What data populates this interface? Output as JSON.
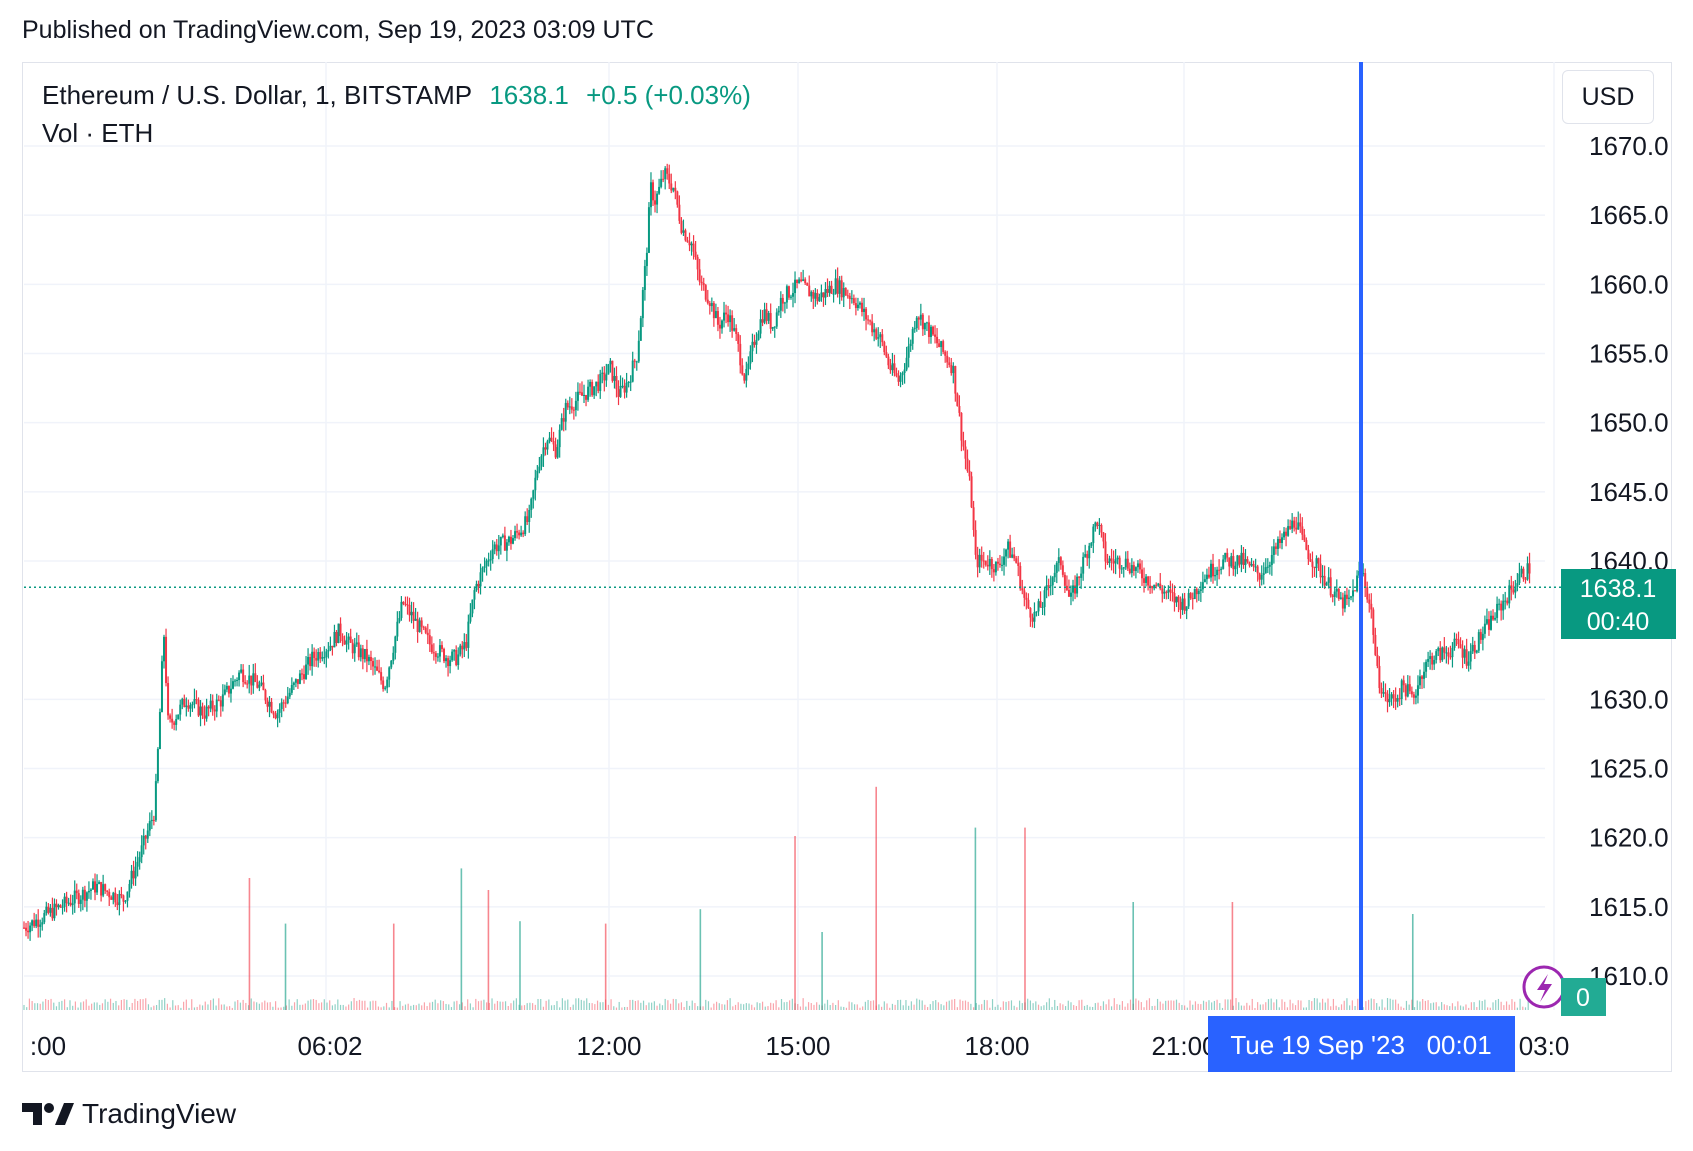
{
  "published": "Published on TradingView.com, Sep 19, 2023 03:09 UTC",
  "legend": {
    "symbol": "Ethereum / U.S. Dollar, 1, BITSTAMP",
    "price": "1638.1",
    "change": "+0.5 (+0.03%)",
    "volume": "Vol · ETH"
  },
  "currency_button": "USD",
  "price_label": {
    "value": "1638.1",
    "countdown": "00:40"
  },
  "volume_label": "0",
  "crosshair_label": "Tue 19 Sep '23   00:01",
  "brand": "TradingView",
  "colors": {
    "up": "#089981",
    "down": "#f23645",
    "crosshair": "#2962ff",
    "accent": "#22ab94"
  },
  "chart_data": {
    "type": "candlestick",
    "title": "Ethereum / U.S. Dollar, 1, BITSTAMP",
    "ylim": [
      1607,
      1674
    ],
    "y_ticks": [
      "1670.0",
      "1665.0",
      "1660.0",
      "1655.0",
      "1650.0",
      "1645.0",
      "1640.0",
      "1630.0",
      "1625.0",
      "1620.0",
      "1615.0",
      "1610.0"
    ],
    "x_ticks": [
      ":00",
      "06:02",
      "12:00",
      "15:00",
      "18:00",
      "21:00",
      "03:0"
    ],
    "current_price": 1638.1,
    "grid": true,
    "series": [
      {
        "name": "price",
        "anchors": [
          [
            0,
            1613.5
          ],
          [
            8,
            1615
          ],
          [
            16,
            1616.5
          ],
          [
            22,
            1615.5
          ],
          [
            26,
            1619
          ],
          [
            29,
            1622
          ],
          [
            30,
            1628
          ],
          [
            31,
            1635
          ],
          [
            32,
            1628
          ],
          [
            36,
            1630
          ],
          [
            40,
            1629
          ],
          [
            44,
            1630
          ],
          [
            48,
            1632
          ],
          [
            52,
            1631
          ],
          [
            56,
            1629
          ],
          [
            60,
            1631
          ],
          [
            64,
            1633
          ],
          [
            68,
            1634
          ],
          [
            70,
            1635
          ],
          [
            72,
            1634
          ],
          [
            76,
            1633
          ],
          [
            80,
            1631
          ],
          [
            84,
            1637
          ],
          [
            86,
            1636
          ],
          [
            90,
            1634
          ],
          [
            94,
            1633
          ],
          [
            96,
            1633
          ],
          [
            98,
            1634
          ],
          [
            100,
            1638
          ],
          [
            104,
            1641
          ],
          [
            108,
            1641.5
          ],
          [
            112,
            1643
          ],
          [
            114,
            1647
          ],
          [
            116,
            1649
          ],
          [
            118,
            1648
          ],
          [
            120,
            1651
          ],
          [
            124,
            1652
          ],
          [
            128,
            1653
          ],
          [
            130,
            1654
          ],
          [
            132,
            1652
          ],
          [
            134,
            1653
          ],
          [
            136,
            1655
          ],
          [
            138,
            1662
          ],
          [
            139,
            1667
          ],
          [
            140,
            1666
          ],
          [
            142,
            1668
          ],
          [
            144,
            1667
          ],
          [
            146,
            1664
          ],
          [
            148,
            1663
          ],
          [
            150,
            1660
          ],
          [
            152,
            1659
          ],
          [
            154,
            1657
          ],
          [
            156,
            1658
          ],
          [
            158,
            1656
          ],
          [
            160,
            1653
          ],
          [
            162,
            1656
          ],
          [
            164,
            1658
          ],
          [
            166,
            1657
          ],
          [
            168,
            1659
          ],
          [
            172,
            1660
          ],
          [
            176,
            1659
          ],
          [
            180,
            1660
          ],
          [
            184,
            1659
          ],
          [
            186,
            1658
          ],
          [
            188,
            1657
          ],
          [
            190,
            1656
          ],
          [
            192,
            1654
          ],
          [
            194,
            1653
          ],
          [
            196,
            1655
          ],
          [
            198,
            1658
          ],
          [
            200,
            1657
          ],
          [
            202,
            1656
          ],
          [
            204,
            1655
          ],
          [
            206,
            1654
          ],
          [
            208,
            1649
          ],
          [
            210,
            1645
          ],
          [
            211,
            1640
          ],
          [
            214,
            1640
          ],
          [
            216,
            1639.5
          ],
          [
            218,
            1641
          ],
          [
            220,
            1640
          ],
          [
            222,
            1637
          ],
          [
            224,
            1636
          ],
          [
            226,
            1637
          ],
          [
            228,
            1639
          ],
          [
            230,
            1640
          ],
          [
            232,
            1637
          ],
          [
            234,
            1639
          ],
          [
            236,
            1641
          ],
          [
            238,
            1643
          ],
          [
            240,
            1640
          ],
          [
            244,
            1640
          ],
          [
            248,
            1639
          ],
          [
            252,
            1638
          ],
          [
            256,
            1637
          ],
          [
            258,
            1637
          ],
          [
            262,
            1639
          ],
          [
            266,
            1640
          ],
          [
            270,
            1640
          ],
          [
            274,
            1639
          ],
          [
            278,
            1641
          ],
          [
            280,
            1642
          ],
          [
            282,
            1643
          ],
          [
            284,
            1641
          ],
          [
            286,
            1640
          ],
          [
            288,
            1639
          ],
          [
            290,
            1638
          ],
          [
            292,
            1637
          ],
          [
            294,
            1637
          ],
          [
            296,
            1639
          ],
          [
            297,
            1639
          ],
          [
            299,
            1636
          ],
          [
            300,
            1632
          ],
          [
            302,
            1630
          ],
          [
            304,
            1630
          ],
          [
            306,
            1631
          ],
          [
            308,
            1630
          ],
          [
            310,
            1632
          ],
          [
            312,
            1633
          ],
          [
            316,
            1633.5
          ],
          [
            318,
            1634
          ],
          [
            320,
            1633
          ],
          [
            322,
            1634
          ],
          [
            324,
            1635
          ],
          [
            326,
            1636
          ],
          [
            328,
            1637
          ],
          [
            330,
            1638
          ],
          [
            332,
            1639
          ],
          [
            334,
            1639.5
          ]
        ]
      },
      {
        "name": "volume",
        "spikes": [
          [
            50,
            1.1
          ],
          [
            58,
            0.72
          ],
          [
            82,
            0.72
          ],
          [
            97,
            1.18
          ],
          [
            103,
            1.0
          ],
          [
            110,
            0.74
          ],
          [
            129,
            0.72
          ],
          [
            150,
            0.84
          ],
          [
            171,
            1.45
          ],
          [
            177,
            0.65
          ],
          [
            189,
            1.86
          ],
          [
            211,
            1.52
          ],
          [
            222,
            1.52
          ],
          [
            246,
            0.9
          ],
          [
            268,
            0.9
          ],
          [
            308,
            0.8
          ]
        ]
      }
    ]
  }
}
